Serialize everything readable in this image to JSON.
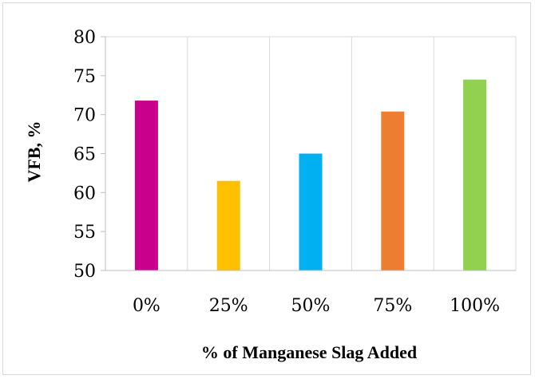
{
  "chart_data": {
    "type": "bar",
    "title": "",
    "xlabel": "% of Manganese Slag Added",
    "ylabel": "VFB, %",
    "categories": [
      "0%",
      "25%",
      "50%",
      "75%",
      "100%"
    ],
    "values": [
      71.8,
      61.5,
      65.0,
      70.4,
      74.5
    ],
    "bar_colors": [
      "#c8008c",
      "#ffc000",
      "#00b0f0",
      "#ed7d31",
      "#92d050"
    ],
    "ylim": [
      50,
      80
    ],
    "yticks": [
      "50",
      "55",
      "60",
      "65",
      "70",
      "75",
      "80"
    ],
    "grid": "vertical",
    "legend": "none"
  }
}
